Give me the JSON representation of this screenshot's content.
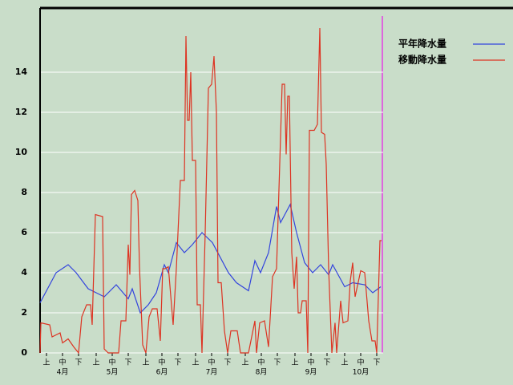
{
  "chart_data": {
    "type": "line",
    "xlim": [
      0,
      214
    ],
    "ylim": [
      0,
      17.2
    ],
    "yticks": [
      0,
      2,
      4,
      6,
      8,
      10,
      12,
      14
    ],
    "xticks": [
      {
        "value": 4,
        "label": "上"
      },
      {
        "value": 14,
        "label": "中"
      },
      {
        "value": 24,
        "label": "下"
      },
      {
        "value": 35,
        "label": "上"
      },
      {
        "value": 45,
        "label": "中"
      },
      {
        "value": 55,
        "label": "下"
      },
      {
        "value": 66,
        "label": "上"
      },
      {
        "value": 76,
        "label": "中"
      },
      {
        "value": 86,
        "label": "下"
      },
      {
        "value": 97,
        "label": "上"
      },
      {
        "value": 107,
        "label": "中"
      },
      {
        "value": 117,
        "label": "下"
      },
      {
        "value": 128,
        "label": "上"
      },
      {
        "value": 138,
        "label": "中"
      },
      {
        "value": 148,
        "label": "下"
      },
      {
        "value": 159,
        "label": "上"
      },
      {
        "value": 169,
        "label": "中"
      },
      {
        "value": 179,
        "label": "下"
      },
      {
        "value": 190,
        "label": "上"
      },
      {
        "value": 200,
        "label": "中"
      },
      {
        "value": 210,
        "label": "下"
      }
    ],
    "month_labels": [
      {
        "value": 14,
        "label": "4月"
      },
      {
        "value": 45,
        "label": "5月"
      },
      {
        "value": 76,
        "label": "6月"
      },
      {
        "value": 107,
        "label": "7月"
      },
      {
        "value": 138,
        "label": "8月"
      },
      {
        "value": 169,
        "label": "9月"
      },
      {
        "value": 200,
        "label": "10月"
      }
    ],
    "grid": true,
    "series": [
      {
        "name": "平年降水量",
        "color": "#3344dd",
        "x": [
          0,
          10,
          17.5,
          22.5,
          30,
          35,
          40,
          47.5,
          55,
          57.5,
          62.5,
          67.5,
          72.5,
          77.5,
          80,
          85,
          90,
          95,
          101,
          107.5,
          117.5,
          122.5,
          130,
          134,
          137.5,
          142.5,
          147.5,
          150,
          156,
          160,
          165,
          170,
          175,
          180,
          182.5,
          190,
          195,
          202.5,
          207.5,
          212.5
        ],
        "values": [
          2.5,
          4,
          4.4,
          4,
          3.2,
          3,
          2.8,
          3.4,
          2.7,
          3.2,
          2,
          2.4,
          3,
          4.4,
          4,
          5.5,
          5,
          5.4,
          6,
          5.5,
          4,
          3.5,
          3.1,
          4.6,
          4,
          5,
          7.3,
          6.5,
          7.4,
          6,
          4.5,
          4,
          4.4,
          3.9,
          4.4,
          3.3,
          3.5,
          3.4,
          3,
          3.3
        ]
      },
      {
        "name": "移動降水量",
        "color": "#dd3322",
        "x": [
          0,
          0.5,
          6,
          7.5,
          12.5,
          14,
          17.5,
          21,
          24,
          26,
          29,
          31.5,
          32.5,
          34.5,
          39,
          40,
          42.5,
          49,
          50.5,
          53.5,
          55,
          56,
          57,
          59,
          61,
          62,
          64,
          66,
          68,
          70,
          73,
          75,
          76.5,
          78,
          80,
          83,
          85,
          87.5,
          90,
          91,
          92,
          93,
          94,
          95,
          97,
          98,
          100,
          101,
          103,
          105,
          107,
          108.5,
          110,
          111,
          113,
          115,
          117,
          119,
          123,
          125,
          130,
          134,
          135,
          137,
          140,
          142.5,
          145,
          147.5,
          151,
          152.5,
          153.5,
          154.5,
          155.5,
          157,
          158.5,
          160,
          161,
          162.5,
          163.5,
          166,
          167,
          168,
          171,
          173,
          174.5,
          175.5,
          177.5,
          178.5,
          180,
          182,
          184,
          185,
          187.5,
          189,
          192,
          193.5,
          195,
          196.5,
          200,
          202.5,
          205,
          207,
          209,
          210,
          212,
          213
        ],
        "values": [
          0,
          1.5,
          1.4,
          0.8,
          1,
          0.5,
          0.7,
          0.3,
          0,
          1.8,
          2.4,
          2.4,
          1.4,
          6.9,
          6.8,
          0.2,
          0,
          0,
          1.6,
          1.6,
          5.4,
          3.9,
          7.9,
          8.1,
          7.6,
          4.3,
          0.4,
          0,
          1.8,
          2.2,
          2.2,
          0.6,
          4.2,
          4.2,
          4.3,
          1.4,
          4.2,
          8.6,
          8.6,
          15.8,
          11.6,
          11.6,
          14,
          9.6,
          9.6,
          2.4,
          2.4,
          0,
          6,
          13.2,
          13.4,
          14.8,
          12,
          3.5,
          3.5,
          1.1,
          0,
          1.1,
          1.1,
          0,
          0,
          1.6,
          0,
          1.5,
          1.6,
          0.3,
          3.8,
          4.2,
          13.4,
          13.4,
          9.9,
          12.8,
          12.8,
          5,
          3.2,
          4.8,
          2,
          2,
          2.6,
          2.6,
          0,
          11.1,
          11.1,
          11.4,
          16.2,
          11,
          10.9,
          9.4,
          4.2,
          0,
          1.5,
          0,
          2.6,
          1.5,
          1.6,
          3.6,
          4.5,
          2.8,
          4.1,
          4,
          1.6,
          0.6,
          0.6,
          0,
          5.6,
          5.6
        ]
      }
    ]
  }
}
